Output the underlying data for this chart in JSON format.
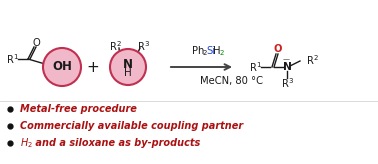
{
  "bg_color": "#ffffff",
  "circle1_face": "#f0b8c8",
  "circle1_edge": "#c03050",
  "circle2_face": "#f0b8c8",
  "circle2_edge": "#c03050",
  "dark_text": "#1a1a1a",
  "green_color": "#008800",
  "blue_color": "#2244cc",
  "arrow_color": "#444444",
  "oxygen_color": "#cc2222",
  "bullet_color": "#111111",
  "bullet_text_color": "#aa1111",
  "bullet1": "Metal-free procedure",
  "bullet2": "Commercially available coupling partner",
  "bullet3": " and a siloxane as by-products"
}
